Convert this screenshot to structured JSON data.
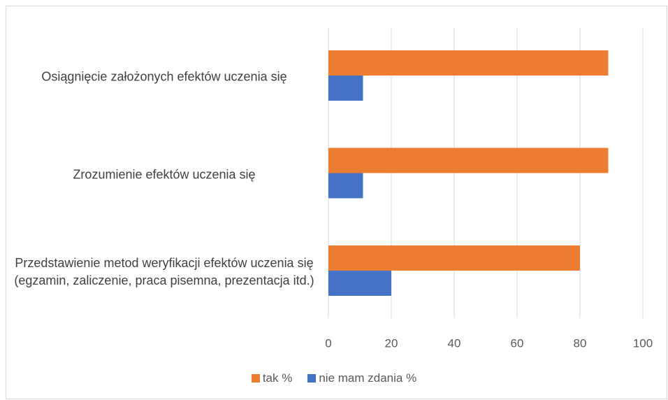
{
  "chart_data": {
    "type": "hbar",
    "categories": [
      "Osiągnięcie założonych efektów uczenia się",
      "Zrozumienie efektów uczenia się",
      "Przedstawienie metod weryfikacji efektów uczenia się (egzamin, zaliczenie, praca pisemna, prezentacja itd.)"
    ],
    "series": [
      {
        "name": "tak %",
        "color": "#ed7d31",
        "values": [
          89,
          89,
          80
        ]
      },
      {
        "name": "nie mam zdania %",
        "color": "#4472c4",
        "values": [
          11,
          11,
          20
        ]
      }
    ],
    "xlim": [
      0,
      100
    ],
    "xticks": [
      0,
      20,
      40,
      60,
      80,
      100
    ],
    "grid": true,
    "legend": "bottom"
  }
}
